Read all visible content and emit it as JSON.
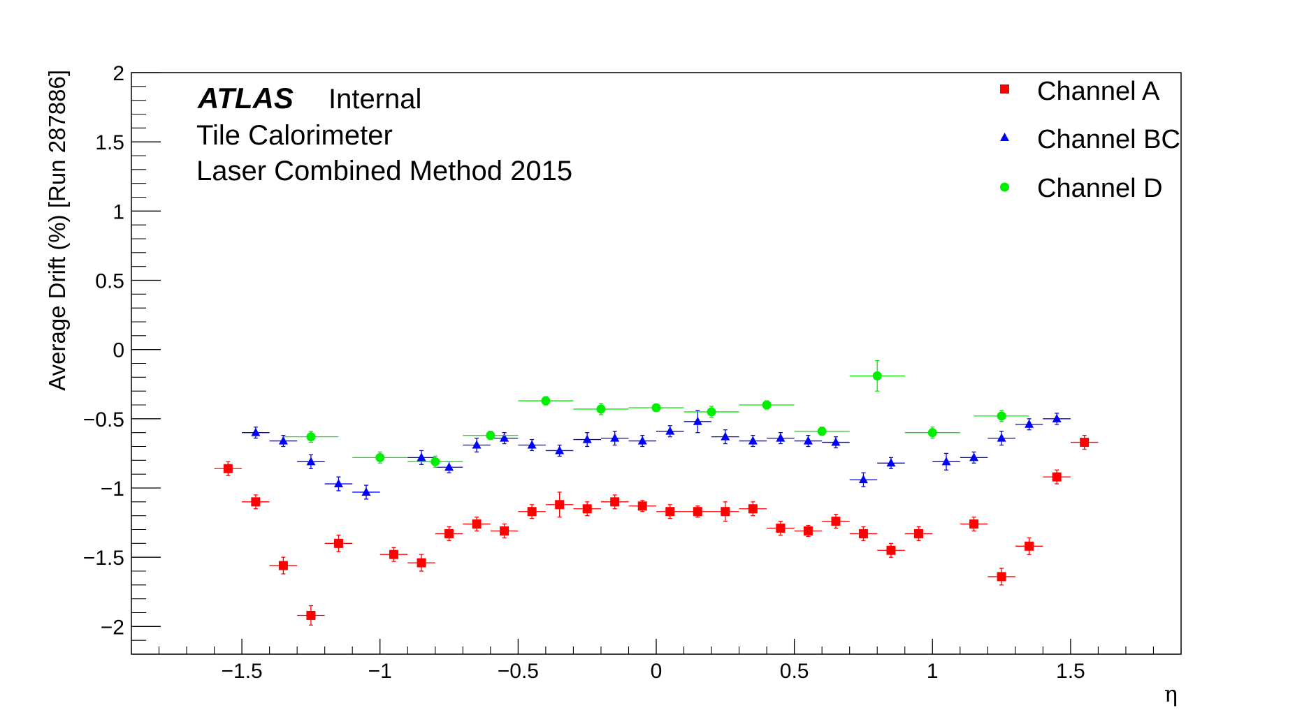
{
  "chart_data": {
    "type": "scatter",
    "title": "",
    "annotations": {
      "experiment": "ATLAS",
      "status": "Internal",
      "line2": "Tile Calorimeter",
      "line3": "Laser Combined Method 2015"
    },
    "xlabel": "η",
    "ylabel": "Average Drift (%) [Run 287886]",
    "xlim": [
      -1.9,
      1.9
    ],
    "ylim": [
      -2.2,
      2.0
    ],
    "x_ticks": [
      -1.5,
      -1,
      -0.5,
      0,
      0.5,
      1,
      1.5
    ],
    "x_tick_labels": [
      "−1.5",
      "−1",
      "−0.5",
      "0",
      "0.5",
      "1",
      "1.5"
    ],
    "y_ticks": [
      2,
      1.5,
      1,
      0.5,
      0,
      -0.5,
      -1,
      -1.5,
      -2
    ],
    "y_tick_labels": [
      "2",
      "1.5",
      "1",
      "0.5",
      "0",
      "−0.5",
      "−1",
      "−1.5",
      "−2"
    ],
    "grid": false,
    "legend_position": "top-right",
    "series": [
      {
        "name": "Channel A",
        "marker": "square",
        "color": "#ff0000",
        "x_halfwidth": 0.05,
        "points": [
          {
            "x": -1.55,
            "y": -0.86,
            "err": 0.05
          },
          {
            "x": -1.45,
            "y": -1.1,
            "err": 0.05
          },
          {
            "x": -1.35,
            "y": -1.56,
            "err": 0.06
          },
          {
            "x": -1.25,
            "y": -1.92,
            "err": 0.07
          },
          {
            "x": -1.15,
            "y": -1.4,
            "err": 0.06
          },
          {
            "x": -0.95,
            "y": -1.48,
            "err": 0.05
          },
          {
            "x": -0.85,
            "y": -1.54,
            "err": 0.06
          },
          {
            "x": -0.75,
            "y": -1.33,
            "err": 0.05
          },
          {
            "x": -0.65,
            "y": -1.26,
            "err": 0.05
          },
          {
            "x": -0.55,
            "y": -1.31,
            "err": 0.05
          },
          {
            "x": -0.45,
            "y": -1.17,
            "err": 0.05
          },
          {
            "x": -0.35,
            "y": -1.12,
            "err": 0.09
          },
          {
            "x": -0.25,
            "y": -1.15,
            "err": 0.05
          },
          {
            "x": -0.15,
            "y": -1.1,
            "err": 0.05
          },
          {
            "x": -0.05,
            "y": -1.13,
            "err": 0.04
          },
          {
            "x": 0.05,
            "y": -1.17,
            "err": 0.05
          },
          {
            "x": 0.15,
            "y": -1.17,
            "err": 0.04
          },
          {
            "x": 0.25,
            "y": -1.17,
            "err": 0.07
          },
          {
            "x": 0.35,
            "y": -1.15,
            "err": 0.05
          },
          {
            "x": 0.45,
            "y": -1.29,
            "err": 0.05
          },
          {
            "x": 0.55,
            "y": -1.31,
            "err": 0.04
          },
          {
            "x": 0.65,
            "y": -1.24,
            "err": 0.05
          },
          {
            "x": 0.75,
            "y": -1.33,
            "err": 0.05
          },
          {
            "x": 0.85,
            "y": -1.45,
            "err": 0.05
          },
          {
            "x": 0.95,
            "y": -1.33,
            "err": 0.05
          },
          {
            "x": 1.15,
            "y": -1.26,
            "err": 0.05
          },
          {
            "x": 1.25,
            "y": -1.64,
            "err": 0.06
          },
          {
            "x": 1.35,
            "y": -1.42,
            "err": 0.06
          },
          {
            "x": 1.45,
            "y": -0.92,
            "err": 0.05
          },
          {
            "x": 1.55,
            "y": -0.67,
            "err": 0.05
          }
        ]
      },
      {
        "name": "Channel BC",
        "marker": "triangle",
        "color": "#0000ff",
        "x_halfwidth": 0.05,
        "points": [
          {
            "x": -1.45,
            "y": -0.6,
            "err": 0.04
          },
          {
            "x": -1.35,
            "y": -0.66,
            "err": 0.04
          },
          {
            "x": -1.25,
            "y": -0.81,
            "err": 0.05
          },
          {
            "x": -1.15,
            "y": -0.97,
            "err": 0.05
          },
          {
            "x": -1.05,
            "y": -1.03,
            "err": 0.05
          },
          {
            "x": -0.85,
            "y": -0.78,
            "err": 0.05
          },
          {
            "x": -0.75,
            "y": -0.85,
            "err": 0.04
          },
          {
            "x": -0.65,
            "y": -0.69,
            "err": 0.05
          },
          {
            "x": -0.55,
            "y": -0.64,
            "err": 0.04
          },
          {
            "x": -0.45,
            "y": -0.69,
            "err": 0.04
          },
          {
            "x": -0.35,
            "y": -0.73,
            "err": 0.04
          },
          {
            "x": -0.25,
            "y": -0.65,
            "err": 0.05
          },
          {
            "x": -0.15,
            "y": -0.64,
            "err": 0.05
          },
          {
            "x": -0.05,
            "y": -0.66,
            "err": 0.04
          },
          {
            "x": 0.05,
            "y": -0.59,
            "err": 0.04
          },
          {
            "x": 0.15,
            "y": -0.52,
            "err": 0.08
          },
          {
            "x": 0.25,
            "y": -0.63,
            "err": 0.05
          },
          {
            "x": 0.35,
            "y": -0.66,
            "err": 0.04
          },
          {
            "x": 0.45,
            "y": -0.64,
            "err": 0.04
          },
          {
            "x": 0.55,
            "y": -0.66,
            "err": 0.04
          },
          {
            "x": 0.65,
            "y": -0.67,
            "err": 0.04
          },
          {
            "x": 0.75,
            "y": -0.94,
            "err": 0.05
          },
          {
            "x": 0.85,
            "y": -0.82,
            "err": 0.04
          },
          {
            "x": 1.05,
            "y": -0.81,
            "err": 0.06
          },
          {
            "x": 1.15,
            "y": -0.78,
            "err": 0.04
          },
          {
            "x": 1.25,
            "y": -0.64,
            "err": 0.05
          },
          {
            "x": 1.35,
            "y": -0.54,
            "err": 0.04
          },
          {
            "x": 1.45,
            "y": -0.5,
            "err": 0.04
          }
        ]
      },
      {
        "name": "Channel D",
        "marker": "circle",
        "color": "#00ee00",
        "points": [
          {
            "x": -1.25,
            "y": -0.63,
            "err": 0.04,
            "xerr": 0.1
          },
          {
            "x": -1.0,
            "y": -0.78,
            "err": 0.04,
            "xerr": 0.1
          },
          {
            "x": -0.8,
            "y": -0.81,
            "err": 0.04,
            "xerr": 0.1
          },
          {
            "x": -0.6,
            "y": -0.62,
            "err": 0.03,
            "xerr": 0.1
          },
          {
            "x": -0.4,
            "y": -0.37,
            "err": 0.03,
            "xerr": 0.1
          },
          {
            "x": -0.2,
            "y": -0.43,
            "err": 0.04,
            "xerr": 0.1
          },
          {
            "x": 0.0,
            "y": -0.42,
            "err": 0.02,
            "xerr": 0.1
          },
          {
            "x": 0.2,
            "y": -0.45,
            "err": 0.04,
            "xerr": 0.1
          },
          {
            "x": 0.4,
            "y": -0.4,
            "err": 0.03,
            "xerr": 0.1
          },
          {
            "x": 0.6,
            "y": -0.59,
            "err": 0.03,
            "xerr": 0.1
          },
          {
            "x": 0.8,
            "y": -0.19,
            "err": 0.11,
            "xerr": 0.1
          },
          {
            "x": 1.0,
            "y": -0.6,
            "err": 0.04,
            "xerr": 0.1
          },
          {
            "x": 1.25,
            "y": -0.48,
            "err": 0.04,
            "xerr": 0.1
          }
        ]
      }
    ]
  }
}
